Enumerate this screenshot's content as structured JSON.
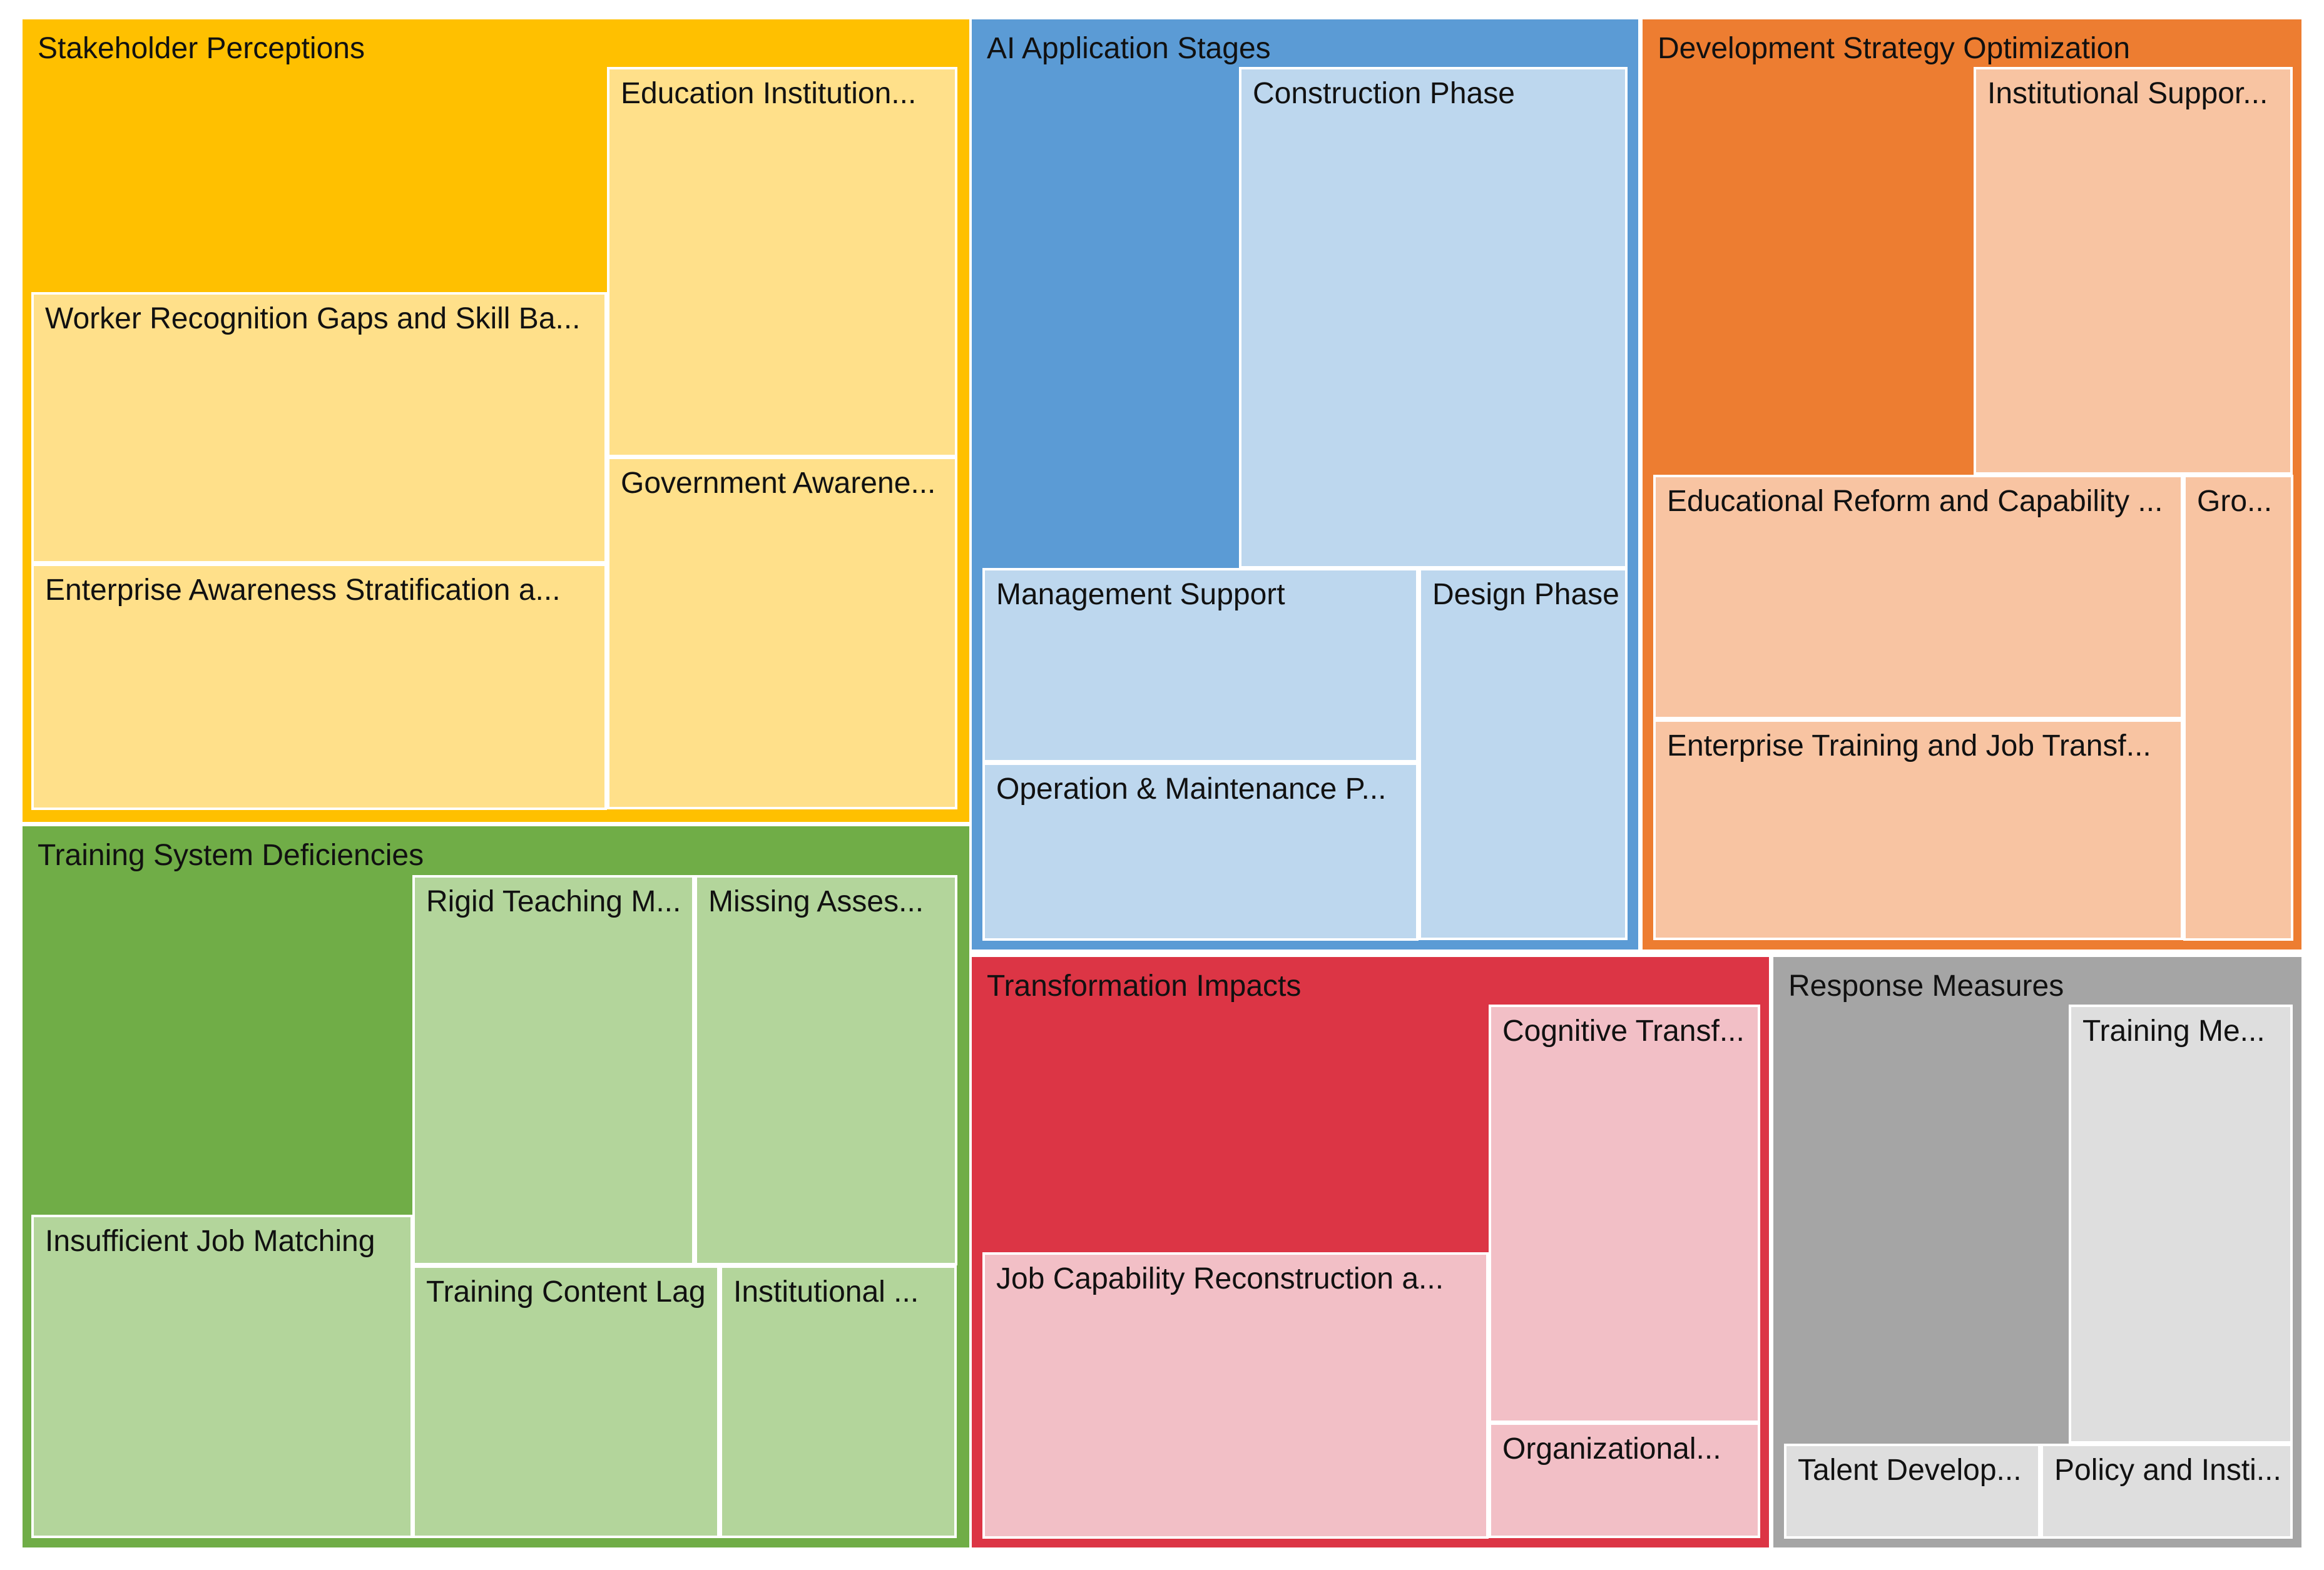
{
  "chart_data": {
    "type": "treemap",
    "title": "",
    "groups": [
      {
        "name": "Stakeholder Perceptions",
        "color": "#FFC000",
        "leaf_color": "#FFE08A",
        "children": [
          {
            "name": "Education Institution...",
            "value": 6.0
          },
          {
            "name": "Worker Recognition Gaps and Skill Ba...",
            "value": 8.0
          },
          {
            "name": "Government Awarene...",
            "value": 5.5
          },
          {
            "name": "Enterprise Awareness Stratification a...",
            "value": 7.5
          }
        ]
      },
      {
        "name": "AI Application Stages",
        "color": "#5B9BD5",
        "leaf_color": "#BDD7EE",
        "children": [
          {
            "name": "Construction Phase",
            "value": 8.0
          },
          {
            "name": "Management Support",
            "value": 3.5
          },
          {
            "name": "Design Phase",
            "value": 3.0
          },
          {
            "name": "Operation & Maintenance P...",
            "value": 3.5
          }
        ]
      },
      {
        "name": "Development Strategy Optimization",
        "color": "#ED7D31",
        "leaf_color": "#F8C4A2",
        "children": [
          {
            "name": "Institutional Suppor...",
            "value": 4.5
          },
          {
            "name": "Educational Reform and Capability ...",
            "value": 4.5
          },
          {
            "name": "Gro...",
            "value": 2.0
          },
          {
            "name": "Enterprise Training and Job Transf...",
            "value": 4.0
          }
        ]
      },
      {
        "name": "Training System Deficiencies",
        "color": "#70AD47",
        "leaf_color": "#B3D59B",
        "children": [
          {
            "name": "Rigid Teaching M...",
            "value": 4.5
          },
          {
            "name": "Missing Asses...",
            "value": 4.5
          },
          {
            "name": "Insufficient Job Matching",
            "value": 5.5
          },
          {
            "name": "Training Content Lag",
            "value": 4.0
          },
          {
            "name": "Institutional ...",
            "value": 3.5
          }
        ]
      },
      {
        "name": "Transformation Impacts",
        "color": "#DC3545",
        "leaf_color": "#F2BFC6",
        "children": [
          {
            "name": "Cognitive Transf...",
            "value": 4.5
          },
          {
            "name": "Job Capability Reconstruction a...",
            "value": 6.5
          },
          {
            "name": "Organizational...",
            "value": 3.0
          }
        ]
      },
      {
        "name": "Response Measures",
        "color": "#A5A5A5",
        "leaf_color": "#DEDEDE",
        "children": [
          {
            "name": "Training Me...",
            "value": 5.0
          },
          {
            "name": "Talent Develop...",
            "value": 2.5
          },
          {
            "name": "Policy and Insti...",
            "value": 2.5
          }
        ]
      }
    ]
  }
}
